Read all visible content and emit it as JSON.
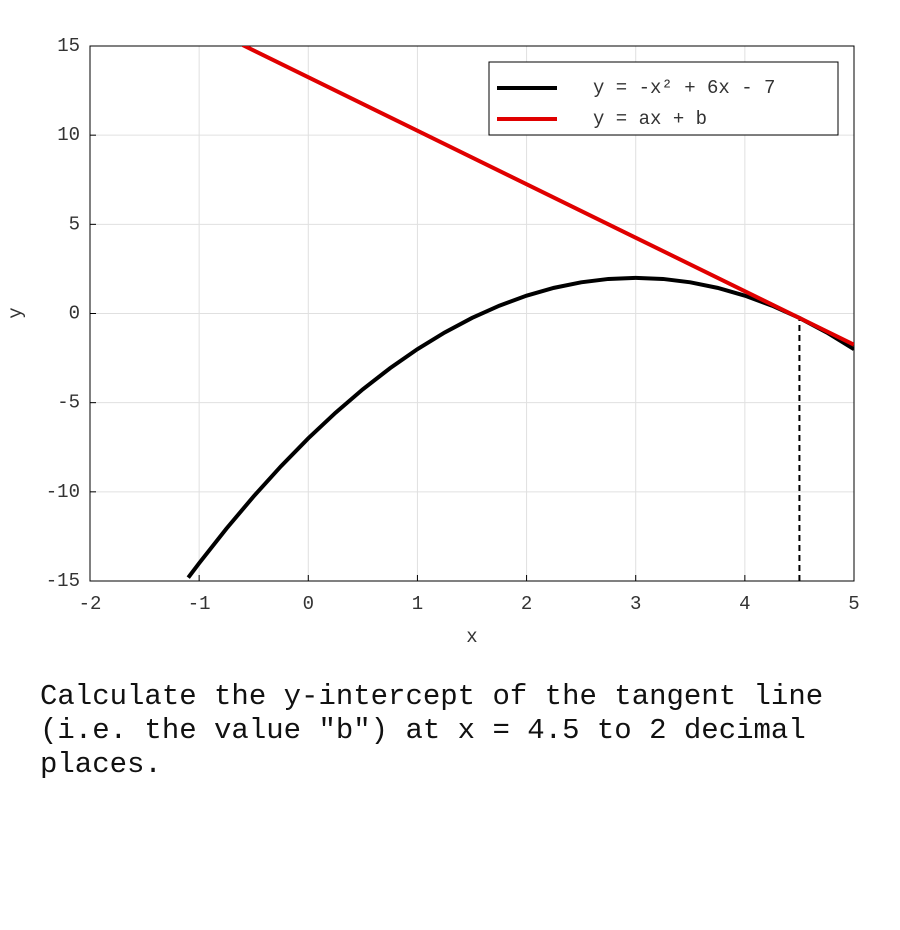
{
  "chart_data": {
    "type": "line",
    "xlabel": "x",
    "ylabel": "y",
    "xlim": [
      -2,
      5
    ],
    "xticks": [
      -2,
      -1,
      0,
      1,
      2,
      3,
      4,
      5
    ],
    "ylim": [
      -15,
      15
    ],
    "yticks": [
      -15,
      -10,
      -5,
      0,
      5,
      10,
      15
    ],
    "grid": true,
    "legend": "upper right",
    "series": [
      {
        "name": "y = -x² + 6x - 7",
        "color": "#000000",
        "x": [
          -1.1,
          -1,
          -0.75,
          -0.5,
          -0.25,
          0,
          0.25,
          0.5,
          0.75,
          1,
          1.25,
          1.5,
          1.75,
          2,
          2.25,
          2.5,
          2.75,
          3,
          3.25,
          3.5,
          3.75,
          4,
          4.25,
          4.5,
          4.75,
          5
        ],
        "values": [
          -14.81,
          -14,
          -12.0625,
          -10.25,
          -8.5625,
          -7,
          -5.5625,
          -4.25,
          -3.0625,
          -2,
          -1.0625,
          -0.25,
          0.4375,
          1,
          1.4375,
          1.75,
          1.9375,
          2,
          1.9375,
          1.75,
          1.4375,
          1,
          0.4375,
          -0.25,
          -1.0625,
          -2
        ]
      },
      {
        "name": "y = ax + b",
        "color": "#e00000",
        "x": [
          -0.6,
          5
        ],
        "values": [
          15.05,
          -1.75
        ]
      }
    ],
    "guide": {
      "x": 4.5,
      "y": -0.25
    }
  },
  "question": "Calculate the y-intercept of the tangent line (i.e. the value \"b\") at x = 4.5 to 2 decimal places."
}
